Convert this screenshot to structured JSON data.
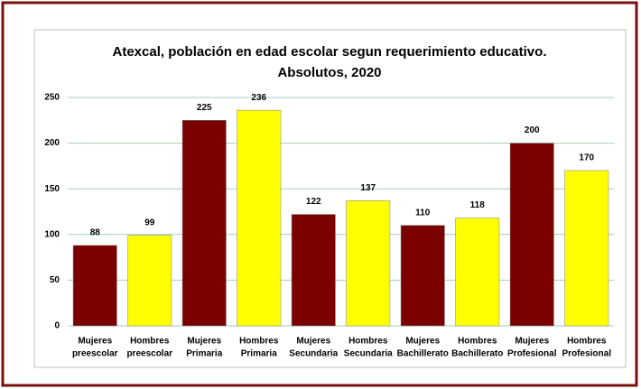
{
  "chart_data": {
    "type": "bar",
    "title": [
      "Atexcal, población en edad escolar segun requerimiento educativo.",
      "Absolutos, 2020"
    ],
    "categories": [
      [
        "Mujeres",
        "preescolar"
      ],
      [
        "Hombres",
        "preescolar"
      ],
      [
        "Mujeres",
        "Primaria"
      ],
      [
        "Hombres",
        "Primaria"
      ],
      [
        "Mujeres",
        "Secundaria"
      ],
      [
        "Hombres",
        "Secundaria"
      ],
      [
        "Mujeres",
        "Bachillerato"
      ],
      [
        "Hombres",
        "Bachillerato"
      ],
      [
        "Mujeres",
        "Profesional"
      ],
      [
        "Hombres",
        "Profesional"
      ]
    ],
    "values": [
      88,
      99,
      225,
      236,
      122,
      137,
      110,
      118,
      200,
      170
    ],
    "colors": [
      "#7b0000",
      "#ffff00",
      "#7b0000",
      "#ffff00",
      "#7b0000",
      "#ffff00",
      "#7b0000",
      "#ffff00",
      "#7b0000",
      "#ffff00"
    ],
    "ylim": [
      0,
      250
    ],
    "yticks": [
      0,
      50,
      100,
      150,
      200,
      250
    ],
    "grid": true
  }
}
